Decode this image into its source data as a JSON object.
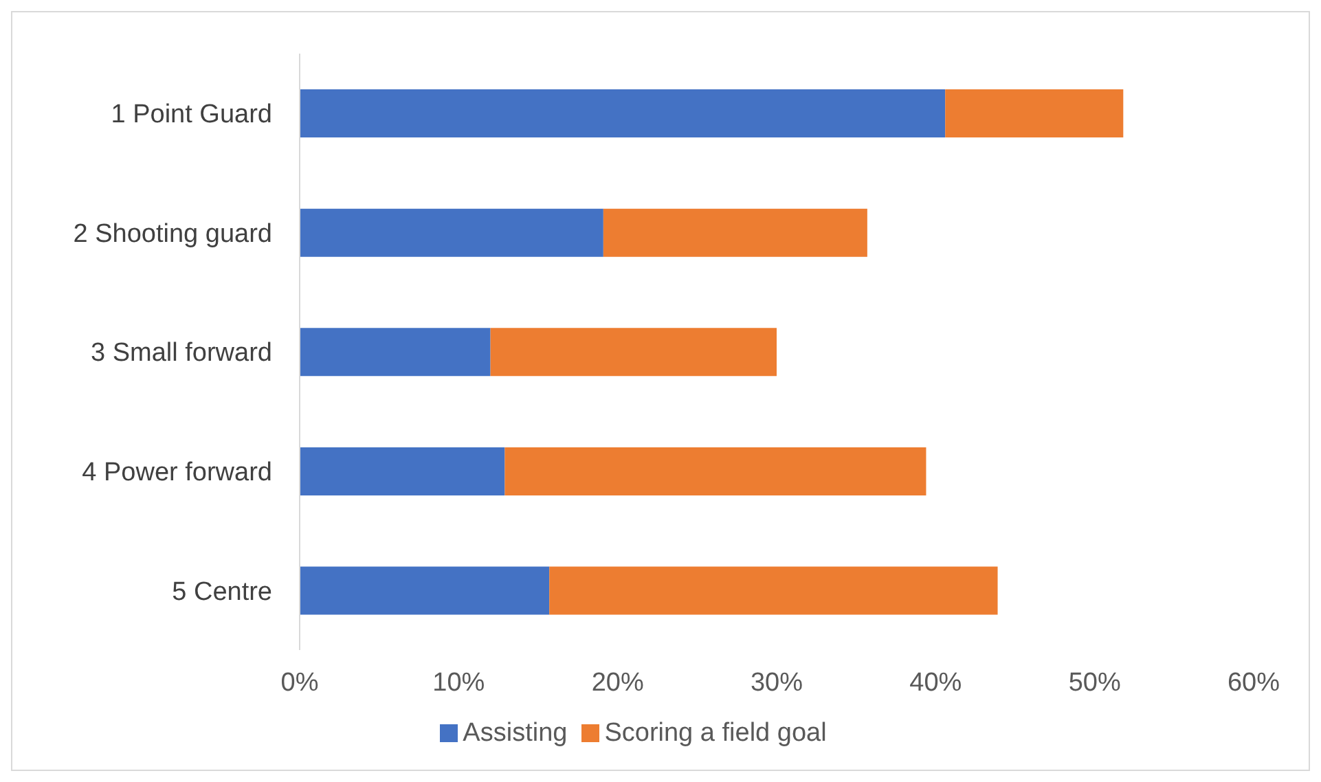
{
  "chart_data": {
    "type": "bar",
    "orientation": "horizontal",
    "stacked": true,
    "categories": [
      "1 Point Guard",
      "2 Shooting guard",
      "3 Small forward",
      "4 Power forward",
      "5 Centre"
    ],
    "series": [
      {
        "name": "Assisting",
        "color": "#4472c4",
        "values": [
          40.6,
          19.1,
          12.0,
          12.9,
          15.7
        ]
      },
      {
        "name": "Scoring a field goal",
        "color": "#ed7d31",
        "values": [
          11.2,
          16.6,
          18.0,
          26.5,
          28.2
        ]
      }
    ],
    "xlim": [
      0,
      60
    ],
    "xticks": [
      {
        "value": 0,
        "label": "0%"
      },
      {
        "value": 10,
        "label": "10%"
      },
      {
        "value": 20,
        "label": "20%"
      },
      {
        "value": 30,
        "label": "30%"
      },
      {
        "value": 40,
        "label": "40%"
      },
      {
        "value": 50,
        "label": "50%"
      },
      {
        "value": 60,
        "label": "60%"
      }
    ],
    "grid": false,
    "legend": "bottom"
  }
}
